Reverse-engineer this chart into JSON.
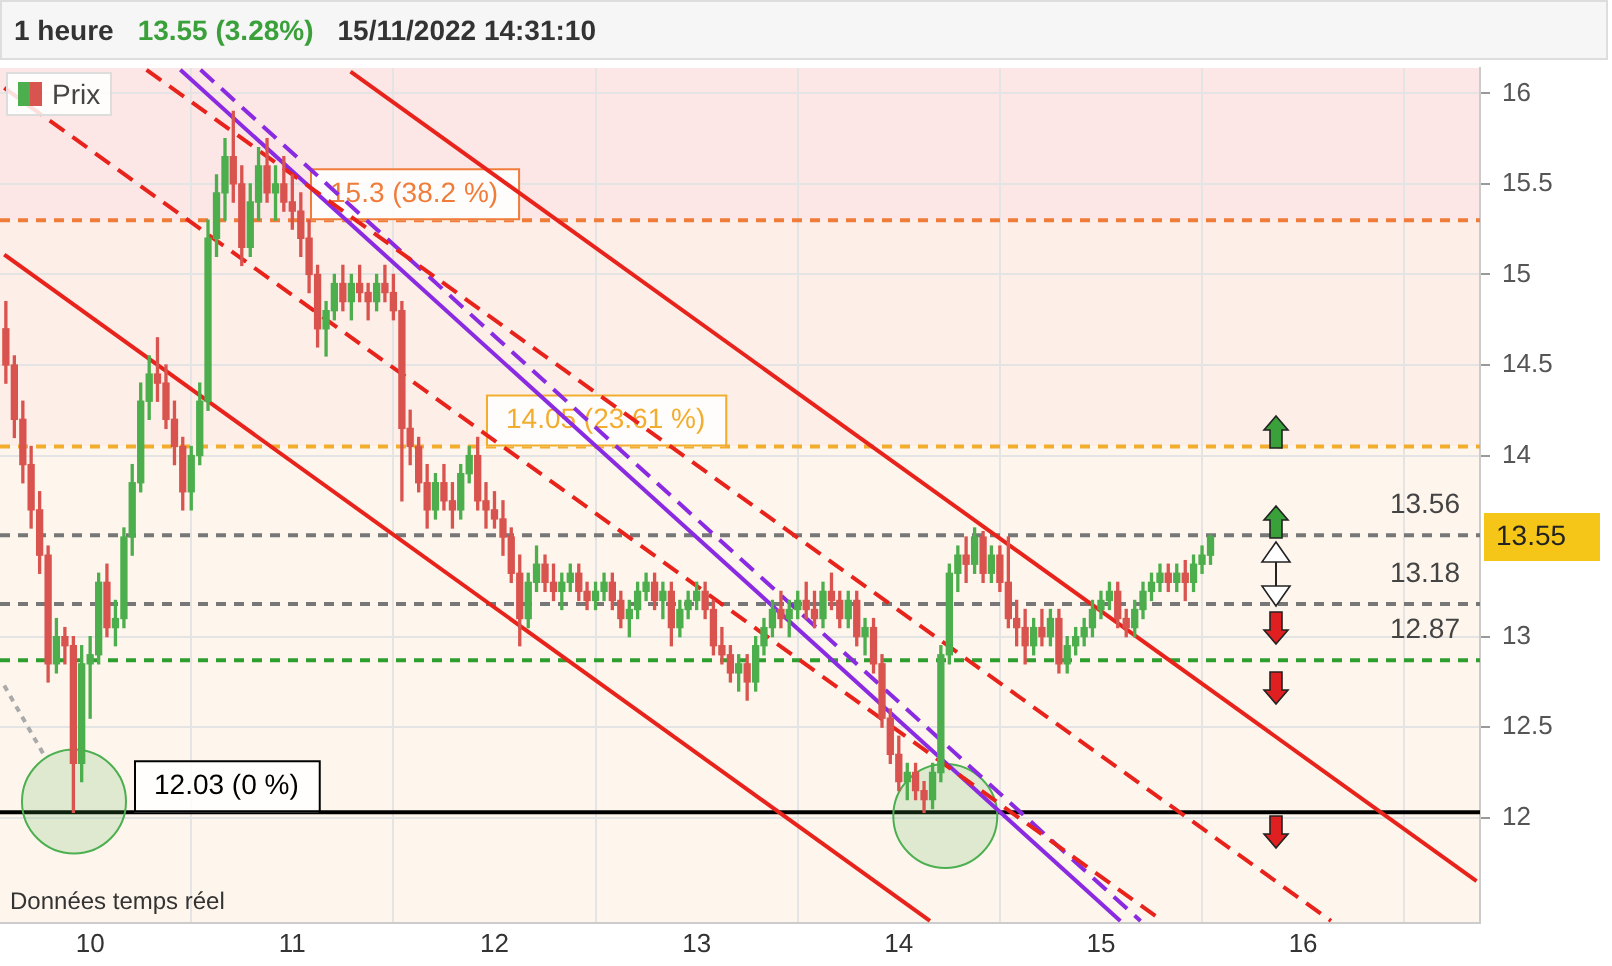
{
  "chart_data": {
    "type": "candlestick",
    "title": "1 heure",
    "subtitle": "13.55 (3.28%)",
    "xlim": [
      9.554,
      16.875
    ],
    "xticks": [
      10,
      11,
      12,
      13,
      14,
      15,
      16
    ],
    "ylim": [
      11.42,
      16.14
    ],
    "yticks": [
      12,
      12.5,
      13,
      14,
      14.5,
      15,
      15.5,
      16
    ],
    "grid": true,
    "legend": "top left",
    "series": [
      {
        "name": "Prix",
        "x": [
          9.583,
          9.625,
          9.667,
          9.708,
          9.75,
          9.792,
          9.833,
          9.875,
          9.917,
          9.958,
          10,
          10.042,
          10.083,
          10.125,
          10.167,
          10.208,
          10.25,
          10.292,
          10.333,
          10.375,
          10.417,
          10.458,
          10.5,
          10.542,
          10.583,
          10.625,
          10.667,
          10.708,
          10.75,
          10.792,
          10.833,
          10.875,
          10.917,
          10.958,
          11,
          11.042,
          11.083,
          11.125,
          11.167,
          11.208,
          11.25,
          11.292,
          11.333,
          11.375,
          11.417,
          11.458,
          11.5,
          11.542,
          11.583,
          11.625,
          11.667,
          11.708,
          11.75,
          11.792,
          11.833,
          11.875,
          11.917,
          11.958,
          12,
          12.042,
          12.083,
          12.125,
          12.167,
          12.208,
          12.25,
          12.292,
          12.333,
          12.375,
          12.417,
          12.458,
          12.5,
          12.542,
          12.583,
          12.625,
          12.667,
          12.708,
          12.75,
          12.792,
          12.833,
          12.875,
          12.917,
          12.958,
          13,
          13.042,
          13.083,
          13.125,
          13.167,
          13.208,
          13.25,
          13.292,
          13.333,
          13.375,
          13.417,
          13.458,
          13.5,
          13.542,
          13.583,
          13.625,
          13.667,
          13.708,
          13.75,
          13.792,
          13.833,
          13.875,
          13.917,
          13.958,
          14,
          14.042,
          14.083,
          14.125,
          14.167,
          14.208,
          14.25,
          14.292,
          14.333,
          14.375,
          14.417,
          14.458,
          14.5,
          14.542,
          14.583,
          14.625,
          14.667,
          14.708,
          14.75,
          14.792,
          14.833,
          14.875,
          14.917,
          14.958,
          15,
          15.042,
          15.083,
          15.125,
          15.167,
          15.208,
          15.25,
          15.292,
          15.333,
          15.375,
          15.417,
          15.458,
          15.5,
          15.542
        ],
        "ohlc": [
          [
            14.7,
            14.85,
            14.4,
            14.5
          ],
          [
            14.5,
            14.55,
            14.1,
            14.2
          ],
          [
            14.2,
            14.3,
            13.85,
            13.95
          ],
          [
            13.95,
            14.05,
            13.6,
            13.7
          ],
          [
            13.7,
            13.8,
            13.35,
            13.45
          ],
          [
            13.45,
            13.5,
            12.75,
            12.85
          ],
          [
            12.85,
            13.1,
            12.8,
            13.0
          ],
          [
            13.0,
            13.05,
            12.85,
            12.95
          ],
          [
            12.95,
            13.0,
            12.03,
            12.3
          ],
          [
            12.3,
            12.95,
            12.2,
            12.85
          ],
          [
            12.85,
            13.0,
            12.55,
            12.9
          ],
          [
            12.9,
            13.35,
            12.85,
            13.3
          ],
          [
            13.3,
            13.4,
            13.0,
            13.05
          ],
          [
            13.05,
            13.2,
            12.95,
            13.1
          ],
          [
            13.1,
            13.6,
            13.05,
            13.55
          ],
          [
            13.55,
            13.95,
            13.45,
            13.85
          ],
          [
            13.85,
            14.4,
            13.8,
            14.3
          ],
          [
            14.3,
            14.55,
            14.2,
            14.45
          ],
          [
            14.45,
            14.65,
            14.3,
            14.4
          ],
          [
            14.4,
            14.5,
            14.15,
            14.2
          ],
          [
            14.2,
            14.3,
            13.95,
            14.05
          ],
          [
            14.05,
            14.1,
            13.7,
            13.8
          ],
          [
            13.8,
            14.05,
            13.7,
            14.0
          ],
          [
            14.0,
            14.4,
            13.95,
            14.3
          ],
          [
            14.3,
            15.3,
            14.25,
            15.2
          ],
          [
            15.2,
            15.55,
            15.1,
            15.45
          ],
          [
            15.45,
            15.75,
            15.3,
            15.65
          ],
          [
            15.65,
            15.9,
            15.4,
            15.5
          ],
          [
            15.5,
            15.6,
            15.05,
            15.15
          ],
          [
            15.15,
            15.5,
            15.1,
            15.4
          ],
          [
            15.4,
            15.7,
            15.3,
            15.6
          ],
          [
            15.6,
            15.75,
            15.4,
            15.45
          ],
          [
            15.45,
            15.6,
            15.3,
            15.5
          ],
          [
            15.5,
            15.65,
            15.35,
            15.4
          ],
          [
            15.4,
            15.55,
            15.25,
            15.35
          ],
          [
            15.35,
            15.45,
            15.1,
            15.2
          ],
          [
            15.2,
            15.3,
            14.9,
            15.0
          ],
          [
            15.0,
            15.05,
            14.6,
            14.7
          ],
          [
            14.7,
            14.85,
            14.55,
            14.8
          ],
          [
            14.8,
            15.0,
            14.75,
            14.95
          ],
          [
            14.95,
            15.05,
            14.8,
            14.85
          ],
          [
            14.85,
            15.0,
            14.75,
            14.95
          ],
          [
            14.95,
            15.05,
            14.85,
            14.9
          ],
          [
            14.9,
            14.95,
            14.75,
            14.85
          ],
          [
            14.85,
            15.0,
            14.8,
            14.95
          ],
          [
            14.95,
            15.05,
            14.85,
            14.9
          ],
          [
            14.9,
            15.0,
            14.75,
            14.8
          ],
          [
            14.8,
            14.85,
            13.75,
            14.15
          ],
          [
            14.15,
            14.25,
            13.95,
            14.05
          ],
          [
            14.05,
            14.1,
            13.8,
            13.85
          ],
          [
            13.85,
            13.95,
            13.6,
            13.7
          ],
          [
            13.7,
            13.9,
            13.65,
            13.85
          ],
          [
            13.85,
            13.95,
            13.7,
            13.75
          ],
          [
            13.75,
            13.85,
            13.6,
            13.7
          ],
          [
            13.7,
            13.95,
            13.65,
            13.9
          ],
          [
            13.9,
            14.05,
            13.85,
            14.0
          ],
          [
            14.0,
            14.1,
            13.7,
            13.75
          ],
          [
            13.75,
            13.85,
            13.6,
            13.7
          ],
          [
            13.7,
            13.8,
            13.6,
            13.65
          ],
          [
            13.65,
            13.75,
            13.45,
            13.55
          ],
          [
            13.55,
            13.6,
            13.3,
            13.35
          ],
          [
            13.35,
            13.45,
            12.95,
            13.1
          ],
          [
            13.1,
            13.35,
            13.05,
            13.3
          ],
          [
            13.3,
            13.5,
            13.25,
            13.4
          ],
          [
            13.4,
            13.45,
            13.25,
            13.3
          ],
          [
            13.3,
            13.4,
            13.2,
            13.25
          ],
          [
            13.25,
            13.35,
            13.15,
            13.3
          ],
          [
            13.3,
            13.4,
            13.25,
            13.35
          ],
          [
            13.35,
            13.4,
            13.2,
            13.25
          ],
          [
            13.25,
            13.3,
            13.15,
            13.2
          ],
          [
            13.2,
            13.3,
            13.15,
            13.25
          ],
          [
            13.25,
            13.35,
            13.2,
            13.3
          ],
          [
            13.3,
            13.35,
            13.15,
            13.2
          ],
          [
            13.2,
            13.25,
            13.05,
            13.1
          ],
          [
            13.1,
            13.2,
            13.0,
            13.15
          ],
          [
            13.15,
            13.3,
            13.1,
            13.25
          ],
          [
            13.25,
            13.35,
            13.2,
            13.3
          ],
          [
            13.3,
            13.35,
            13.15,
            13.2
          ],
          [
            13.2,
            13.3,
            13.1,
            13.25
          ],
          [
            13.25,
            13.3,
            12.95,
            13.05
          ],
          [
            13.05,
            13.2,
            13.0,
            13.15
          ],
          [
            13.15,
            13.25,
            13.1,
            13.2
          ],
          [
            13.2,
            13.3,
            13.15,
            13.25
          ],
          [
            13.25,
            13.3,
            13.1,
            13.15
          ],
          [
            13.15,
            13.2,
            12.9,
            12.95
          ],
          [
            12.95,
            13.05,
            12.85,
            12.9
          ],
          [
            12.9,
            12.95,
            12.75,
            12.8
          ],
          [
            12.8,
            12.9,
            12.7,
            12.85
          ],
          [
            12.85,
            12.9,
            12.65,
            12.75
          ],
          [
            12.75,
            13.0,
            12.7,
            12.95
          ],
          [
            12.95,
            13.1,
            12.9,
            13.05
          ],
          [
            13.05,
            13.2,
            13.0,
            13.15
          ],
          [
            13.15,
            13.25,
            13.05,
            13.1
          ],
          [
            13.1,
            13.2,
            13.0,
            13.15
          ],
          [
            13.15,
            13.25,
            13.1,
            13.2
          ],
          [
            13.2,
            13.3,
            13.1,
            13.15
          ],
          [
            13.15,
            13.25,
            13.05,
            13.1
          ],
          [
            13.1,
            13.3,
            13.05,
            13.25
          ],
          [
            13.25,
            13.35,
            13.15,
            13.2
          ],
          [
            13.2,
            13.25,
            13.05,
            13.1
          ],
          [
            13.1,
            13.25,
            13.05,
            13.2
          ],
          [
            13.2,
            13.25,
            12.95,
            13.0
          ],
          [
            13.0,
            13.1,
            12.9,
            13.05
          ],
          [
            13.05,
            13.1,
            12.8,
            12.85
          ],
          [
            12.85,
            12.9,
            12.5,
            12.55
          ],
          [
            12.55,
            12.6,
            12.3,
            12.35
          ],
          [
            12.35,
            12.45,
            12.15,
            12.2
          ],
          [
            12.2,
            12.3,
            12.1,
            12.25
          ],
          [
            12.25,
            12.3,
            12.1,
            12.15
          ],
          [
            12.15,
            12.2,
            12.03,
            12.1
          ],
          [
            12.1,
            12.3,
            12.05,
            12.25
          ],
          [
            12.25,
            12.95,
            12.2,
            12.9
          ],
          [
            12.9,
            13.4,
            12.85,
            13.35
          ],
          [
            13.35,
            13.5,
            13.25,
            13.45
          ],
          [
            13.45,
            13.55,
            13.3,
            13.4
          ],
          [
            13.4,
            13.6,
            13.35,
            13.55
          ],
          [
            13.55,
            13.58,
            13.3,
            13.35
          ],
          [
            13.35,
            13.5,
            13.3,
            13.45
          ],
          [
            13.45,
            13.5,
            13.25,
            13.3
          ],
          [
            13.3,
            13.55,
            13.05,
            13.1
          ],
          [
            13.1,
            13.2,
            12.95,
            13.05
          ],
          [
            13.05,
            13.15,
            12.85,
            12.95
          ],
          [
            12.95,
            13.1,
            12.9,
            13.05
          ],
          [
            13.05,
            13.15,
            12.95,
            13.0
          ],
          [
            13.0,
            13.15,
            12.95,
            13.1
          ],
          [
            13.1,
            13.15,
            12.8,
            12.85
          ],
          [
            12.85,
            13.0,
            12.8,
            12.95
          ],
          [
            12.95,
            13.05,
            12.9,
            13.0
          ],
          [
            13.0,
            13.1,
            12.95,
            13.05
          ],
          [
            13.05,
            13.2,
            13.0,
            13.15
          ],
          [
            13.15,
            13.25,
            13.1,
            13.2
          ],
          [
            13.2,
            13.3,
            13.15,
            13.25
          ],
          [
            13.25,
            13.3,
            13.05,
            13.1
          ],
          [
            13.1,
            13.15,
            13.0,
            13.05
          ],
          [
            13.05,
            13.2,
            13.0,
            13.15
          ],
          [
            13.15,
            13.3,
            13.1,
            13.25
          ],
          [
            13.25,
            13.35,
            13.2,
            13.3
          ],
          [
            13.3,
            13.4,
            13.25,
            13.35
          ],
          [
            13.35,
            13.4,
            13.25,
            13.3
          ],
          [
            13.3,
            13.4,
            13.25,
            13.35
          ],
          [
            13.35,
            13.42,
            13.2,
            13.3
          ],
          [
            13.3,
            13.45,
            13.25,
            13.4
          ],
          [
            13.4,
            13.5,
            13.35,
            13.45
          ],
          [
            13.45,
            13.56,
            13.4,
            13.55
          ]
        ],
        "colors": [
          "#d9534f",
          "#d9534f",
          "#d9534f",
          "#d9534f",
          "#d9534f",
          "#d9534f",
          "#4cae4c",
          "#d9534f",
          "#d9534f",
          "#4cae4c",
          "#4cae4c",
          "#4cae4c",
          "#d9534f",
          "#4cae4c",
          "#4cae4c",
          "#4cae4c",
          "#4cae4c",
          "#4cae4c",
          "#d9534f",
          "#d9534f",
          "#d9534f",
          "#d9534f",
          "#4cae4c",
          "#4cae4c",
          "#4cae4c",
          "#4cae4c",
          "#4cae4c",
          "#d9534f",
          "#d9534f",
          "#4cae4c",
          "#4cae4c",
          "#d9534f",
          "#4cae4c",
          "#d9534f",
          "#d9534f",
          "#d9534f",
          "#d9534f",
          "#d9534f",
          "#4cae4c",
          "#4cae4c",
          "#d9534f",
          "#4cae4c",
          "#d9534f",
          "#d9534f",
          "#4cae4c",
          "#d9534f",
          "#d9534f",
          "#d9534f",
          "#d9534f",
          "#d9534f",
          "#d9534f",
          "#4cae4c",
          "#d9534f",
          "#d9534f",
          "#4cae4c",
          "#4cae4c",
          "#d9534f",
          "#d9534f",
          "#d9534f",
          "#d9534f",
          "#d9534f",
          "#d9534f",
          "#4cae4c",
          "#4cae4c",
          "#d9534f",
          "#d9534f",
          "#4cae4c",
          "#4cae4c",
          "#d9534f",
          "#d9534f",
          "#4cae4c",
          "#4cae4c",
          "#d9534f",
          "#d9534f",
          "#4cae4c",
          "#4cae4c",
          "#4cae4c",
          "#d9534f",
          "#4cae4c",
          "#d9534f",
          "#4cae4c",
          "#4cae4c",
          "#4cae4c",
          "#d9534f",
          "#d9534f",
          "#d9534f",
          "#d9534f",
          "#4cae4c",
          "#d9534f",
          "#4cae4c",
          "#4cae4c",
          "#4cae4c",
          "#d9534f",
          "#4cae4c",
          "#4cae4c",
          "#d9534f",
          "#d9534f",
          "#4cae4c",
          "#d9534f",
          "#d9534f",
          "#4cae4c",
          "#d9534f",
          "#4cae4c",
          "#d9534f",
          "#d9534f",
          "#d9534f",
          "#d9534f",
          "#4cae4c",
          "#d9534f",
          "#d9534f",
          "#4cae4c",
          "#4cae4c",
          "#4cae4c",
          "#4cae4c",
          "#d9534f",
          "#4cae4c",
          "#d9534f",
          "#4cae4c",
          "#d9534f",
          "#d9534f",
          "#d9534f",
          "#d9534f",
          "#4cae4c",
          "#d9534f",
          "#4cae4c",
          "#d9534f",
          "#4cae4c",
          "#4cae4c",
          "#4cae4c",
          "#4cae4c",
          "#4cae4c",
          "#4cae4c",
          "#d9534f",
          "#d9534f",
          "#4cae4c",
          "#4cae4c",
          "#4cae4c",
          "#4cae4c",
          "#d9534f",
          "#4cae4c",
          "#d9534f",
          "#4cae4c",
          "#4cae4c",
          "#4cae4c"
        ]
      },
      {
        "type": "line",
        "x": [
          11.288,
          16.858
        ],
        "values": [
          16.12,
          11.65
        ],
        "color": "#e8231c",
        "line_style": "solid"
      },
      {
        "type": "line",
        "x": [
          9.575,
          14.154
        ],
        "values": [
          15.11,
          11.43
        ],
        "color": "#e8231c",
        "line_style": "solid"
      },
      {
        "type": "line",
        "x": [
          10.279,
          16.138
        ],
        "values": [
          16.13,
          11.43
        ],
        "color": "#e8231c",
        "line_style": "dashed"
      },
      {
        "type": "line",
        "x": [
          9.575,
          15.304
        ],
        "values": [
          16.03,
          11.43
        ],
        "color": "#e8231c",
        "line_style": "dashed"
      },
      {
        "type": "line",
        "x": [
          10.446,
          15.096
        ],
        "values": [
          16.13,
          11.43
        ],
        "color": "#8a2be2",
        "line_style": "solid"
      },
      {
        "type": "line",
        "x": [
          10.546,
          15.196
        ],
        "values": [
          16.13,
          11.43
        ],
        "color": "#8a2be2",
        "line_style": "dashed"
      },
      {
        "type": "line",
        "x": [
          9.575,
          9.78
        ],
        "values": [
          12.73,
          12.33
        ],
        "color": "#aaaaaa",
        "line_style": "dotted"
      },
      {
        "type": "scatter",
        "x": [
          9.92,
          14.23
        ],
        "values": [
          12.09,
          12.01
        ],
        "color": "#4caf50",
        "marker": "circle"
      }
    ],
    "bands": [
      {
        "axis": "y",
        "from": 15.3,
        "to": 16.14,
        "color": "#fde6e6"
      },
      {
        "axis": "y",
        "from": 14.05,
        "to": 15.3,
        "color": "#fdeee8"
      },
      {
        "axis": "y",
        "from": 11.42,
        "to": 14.05,
        "color": "#fef6ec"
      }
    ],
    "ref_lines": [
      {
        "axis": "y",
        "value": 15.3,
        "label": "15.3 (38.2 %)",
        "color": "#f07c3a",
        "line_style": "dashed"
      },
      {
        "axis": "y",
        "value": 14.05,
        "label": "14.05 (23.61 %)",
        "color": "#f2ad2e",
        "line_style": "dashed"
      },
      {
        "axis": "y",
        "value": 13.56,
        "color": "#777777",
        "line_style": "dashed"
      },
      {
        "axis": "y",
        "value": 13.18,
        "color": "#777777",
        "line_style": "dashed"
      },
      {
        "axis": "y",
        "value": 12.87,
        "color": "#2e9e2e",
        "line_style": "dashed"
      },
      {
        "axis": "y",
        "value": 12.03,
        "label": "12.03 (0 %)",
        "color": "#000000",
        "line_style": "solid"
      }
    ],
    "annotations": [
      "15/11/2022 14:31:10",
      "Données temps réel",
      "13.55",
      {
        "text": "13.56",
        "y": 13.56
      },
      {
        "text": "13.18",
        "y": 13.18
      },
      {
        "text": "12.87",
        "y": 12.87
      }
    ]
  }
}
